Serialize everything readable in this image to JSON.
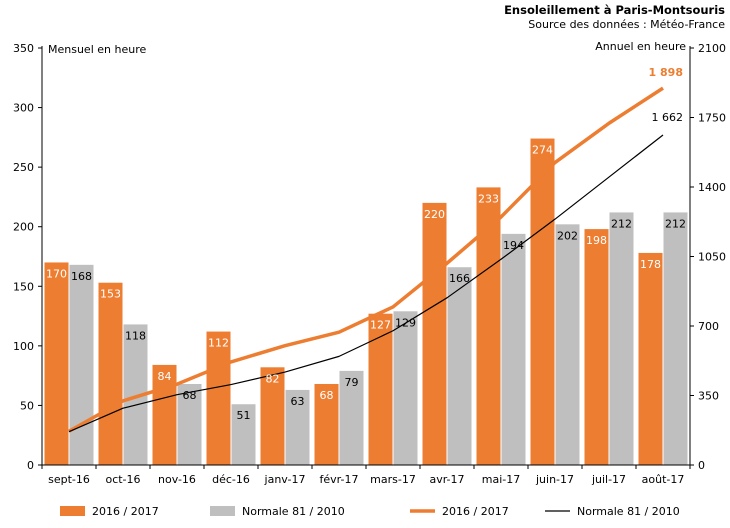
{
  "chart_data": {
    "type": "bar",
    "title": "Ensoleillement à Paris-Montsouris",
    "subtitle": "Source des données : Météo-France",
    "ylabel_left": "Mensuel en heure",
    "ylabel_right": "Annuel en heure",
    "categories": [
      "sept-16",
      "oct-16",
      "nov-16",
      "déc-16",
      "janv-17",
      "févr-17",
      "mars-17",
      "avr-17",
      "mai-17",
      "juin-17",
      "juil-17",
      "août-17"
    ],
    "ylim_left": [
      0,
      350
    ],
    "yticks_left": [
      "0",
      "50",
      "100",
      "150",
      "200",
      "250",
      "300",
      "350"
    ],
    "ylim_right": [
      0,
      2100
    ],
    "yticks_right": [
      "0",
      "350",
      "700",
      "1050",
      "1400",
      "1750",
      "2100"
    ],
    "grid": false,
    "legend_position": "bottom",
    "series": [
      {
        "name": "2016 / 2017",
        "type": "bar",
        "axis": "left",
        "color": "#ED7D31",
        "values": [
          170,
          153,
          84,
          112,
          82,
          68,
          127,
          220,
          233,
          274,
          198,
          178
        ]
      },
      {
        "name": "Normale 81 / 2010",
        "type": "bar",
        "axis": "left",
        "color": "#BFBFBF",
        "values": [
          168,
          118,
          68,
          51,
          63,
          79,
          129,
          166,
          194,
          202,
          212,
          212
        ]
      },
      {
        "name": "2016 / 2017",
        "type": "line",
        "axis": "right",
        "color": "#ED7D31",
        "values": [
          170,
          323,
          407,
          519,
          601,
          669,
          796,
          1016,
          1249,
          1523,
          1721,
          1898
        ],
        "end_label": "1 898"
      },
      {
        "name": "Normale 81 / 2010",
        "type": "line",
        "axis": "right",
        "color": "#000000",
        "values": [
          168,
          286,
          354,
          405,
          468,
          547,
          676,
          842,
          1036,
          1238,
          1450,
          1662
        ],
        "end_label": "1 662"
      }
    ]
  }
}
